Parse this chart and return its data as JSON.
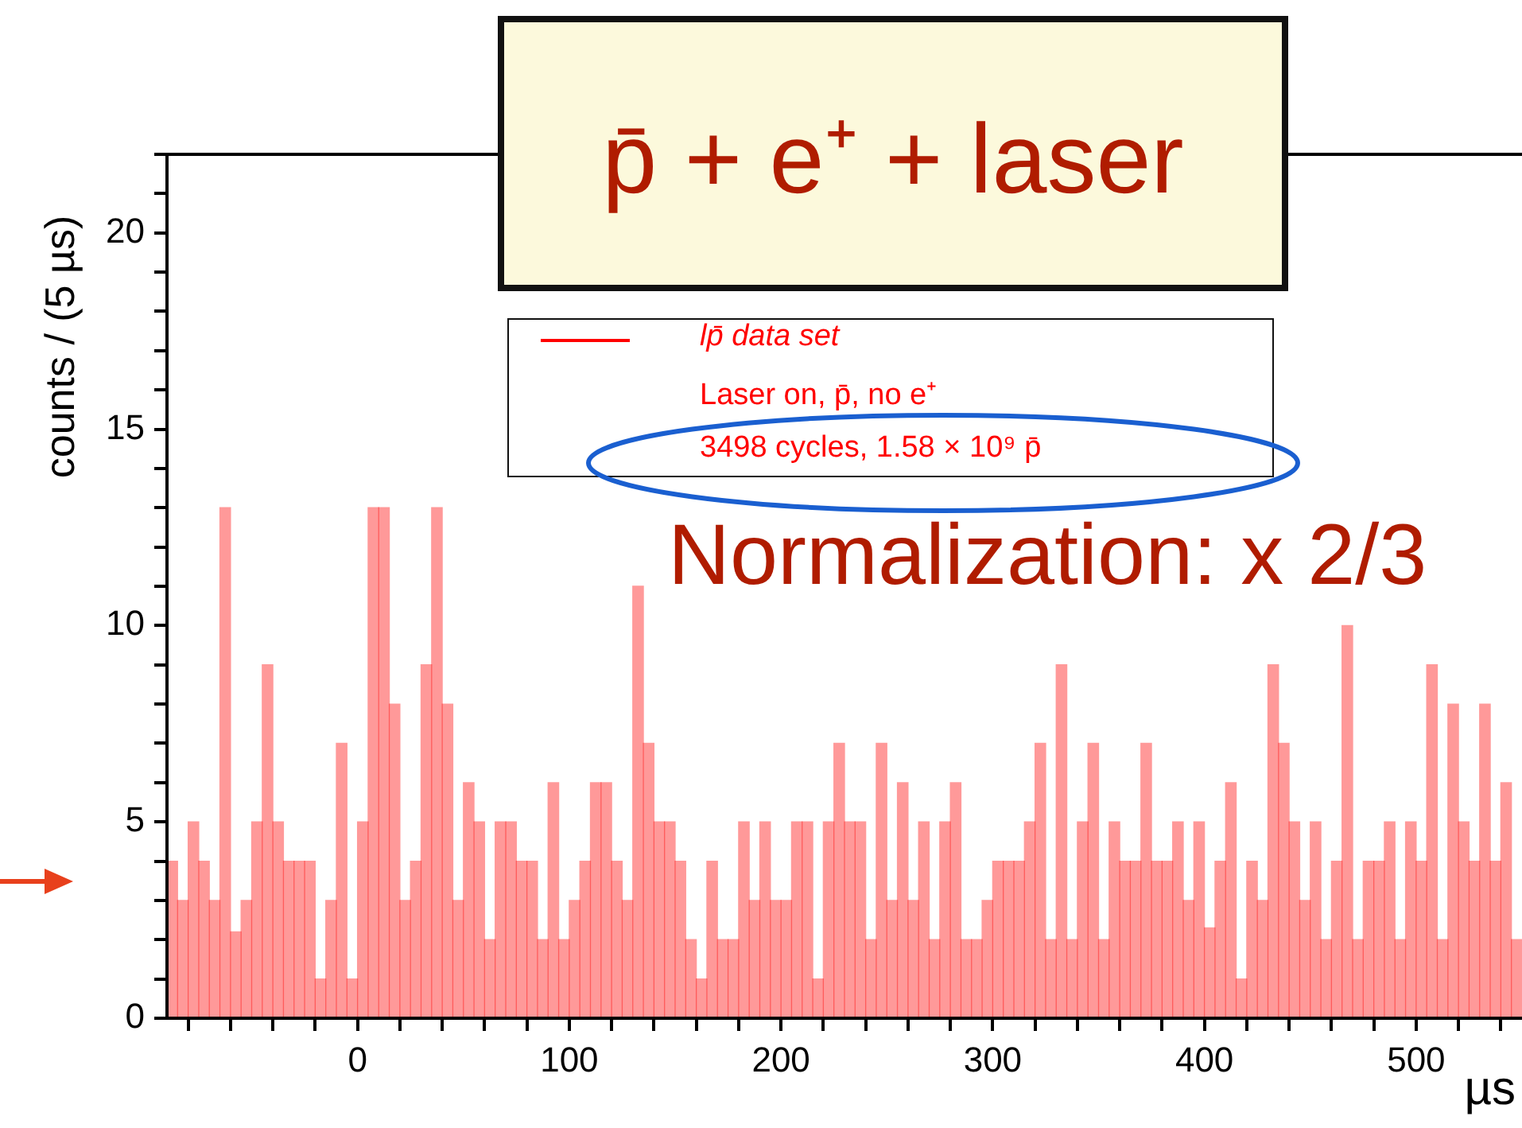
{
  "chart_data": {
    "type": "histogram",
    "title": "p̄ + e⁺ + laser",
    "xlabel": "µs",
    "ylabel": "counts / (5 µs)",
    "annotations": [
      "Laser on, p̄, no e⁺",
      "3498 cycles, 1.58 × 10⁹ p̄",
      "Normalization: x 2/3"
    ],
    "bins": [
      -90,
      -85,
      -80,
      -75,
      -70,
      -65,
      -60,
      -55,
      -50,
      -45,
      -40,
      -35,
      -30,
      -25,
      -20,
      -15,
      -10,
      -5,
      0,
      5,
      10,
      15,
      20,
      25,
      30,
      35,
      40,
      45,
      50,
      55,
      60,
      65,
      70,
      75,
      80,
      85,
      90,
      95,
      100,
      105,
      110,
      115,
      120,
      125,
      130,
      135,
      140,
      145,
      150,
      155,
      160,
      165,
      170,
      175,
      180,
      185,
      190,
      195,
      200,
      205,
      210,
      215,
      220,
      225,
      230,
      235,
      240,
      245,
      250,
      255,
      260,
      265,
      270,
      275,
      280,
      285,
      290,
      295,
      300,
      305,
      310,
      315,
      320,
      325,
      330,
      335,
      340,
      345,
      350,
      355,
      360,
      365,
      370,
      375,
      380,
      385,
      390,
      395,
      400,
      405,
      410,
      415,
      420,
      425,
      430,
      435,
      440,
      445,
      450,
      455,
      460,
      465,
      470,
      475,
      480,
      485,
      490,
      495,
      500,
      505,
      510,
      515,
      520,
      525,
      530,
      535,
      540,
      545,
      550
    ],
    "series": [
      {
        "name": "lp̄ data set",
        "color": "#ff0000",
        "values": [
          4,
          3,
          5,
          4,
          3,
          13,
          2.2,
          3,
          5,
          9,
          5,
          4,
          4,
          4,
          1,
          3,
          7,
          1,
          5,
          13,
          13,
          8,
          3,
          4,
          9,
          13,
          8,
          3,
          6,
          5,
          2,
          5,
          5,
          4,
          4,
          2,
          6,
          2,
          3,
          4,
          6,
          6,
          4,
          3,
          11,
          7,
          5,
          5,
          4,
          2,
          1,
          4,
          2,
          2,
          5,
          3,
          5,
          3,
          3,
          5,
          5,
          1,
          5,
          7,
          5,
          5,
          2,
          7,
          3,
          6,
          3,
          5,
          2,
          5,
          6,
          2,
          2,
          3,
          4,
          4,
          4,
          5,
          7,
          2,
          9,
          2,
          5,
          7,
          2,
          5,
          4,
          4,
          7,
          4,
          4,
          5,
          3,
          5,
          2.3,
          4,
          6,
          1,
          4,
          3,
          9,
          7,
          5,
          3,
          5,
          2,
          4,
          10,
          2,
          4,
          4,
          5,
          2,
          5,
          4,
          9,
          2,
          8,
          5,
          4,
          8,
          4,
          6,
          2
        ]
      }
    ],
    "xlim": [
      -90,
      550
    ],
    "xticks": [
      {
        "value": -80,
        "label": null
      },
      {
        "value": -60,
        "label": null
      },
      {
        "value": -40,
        "label": null
      },
      {
        "value": -20,
        "label": null
      },
      0,
      {
        "value": 20,
        "label": null
      },
      {
        "value": 40,
        "label": null
      },
      {
        "value": 60,
        "label": null
      },
      {
        "value": 80,
        "label": null
      },
      100,
      {
        "value": 120,
        "label": null
      },
      {
        "value": 140,
        "label": null
      },
      {
        "value": 160,
        "label": null
      },
      {
        "value": 180,
        "label": null
      },
      200,
      {
        "value": 220,
        "label": null
      },
      {
        "value": 240,
        "label": null
      },
      {
        "value": 260,
        "label": null
      },
      {
        "value": 280,
        "label": null
      },
      300,
      {
        "value": 320,
        "label": null
      },
      {
        "value": 340,
        "label": null
      },
      {
        "value": 360,
        "label": null
      },
      {
        "value": 380,
        "label": null
      },
      400,
      {
        "value": 420,
        "label": null
      },
      {
        "value": 440,
        "label": null
      },
      {
        "value": 460,
        "label": null
      },
      {
        "value": 480,
        "label": null
      },
      500,
      {
        "value": 520,
        "label": null
      },
      {
        "value": 540,
        "label": null
      }
    ],
    "ylim": [
      0,
      22
    ],
    "yticks": [
      0,
      {
        "value": 1,
        "label": null
      },
      {
        "value": 2,
        "label": null
      },
      {
        "value": 3,
        "label": null
      },
      {
        "value": 4,
        "label": null
      },
      5,
      {
        "value": 6,
        "label": null
      },
      {
        "value": 7,
        "label": null
      },
      {
        "value": 8,
        "label": null
      },
      {
        "value": 9,
        "label": null
      },
      10,
      {
        "value": 11,
        "label": null
      },
      {
        "value": 12,
        "label": null
      },
      {
        "value": 13,
        "label": null
      },
      {
        "value": 14,
        "label": null
      },
      15,
      {
        "value": 16,
        "label": null
      },
      {
        "value": 17,
        "label": null
      },
      {
        "value": 18,
        "label": null
      },
      {
        "value": 19,
        "label": null
      },
      20,
      {
        "value": 21,
        "label": null
      },
      {
        "value": 22,
        "label": null
      }
    ],
    "grid": false,
    "legend": "top"
  }
}
